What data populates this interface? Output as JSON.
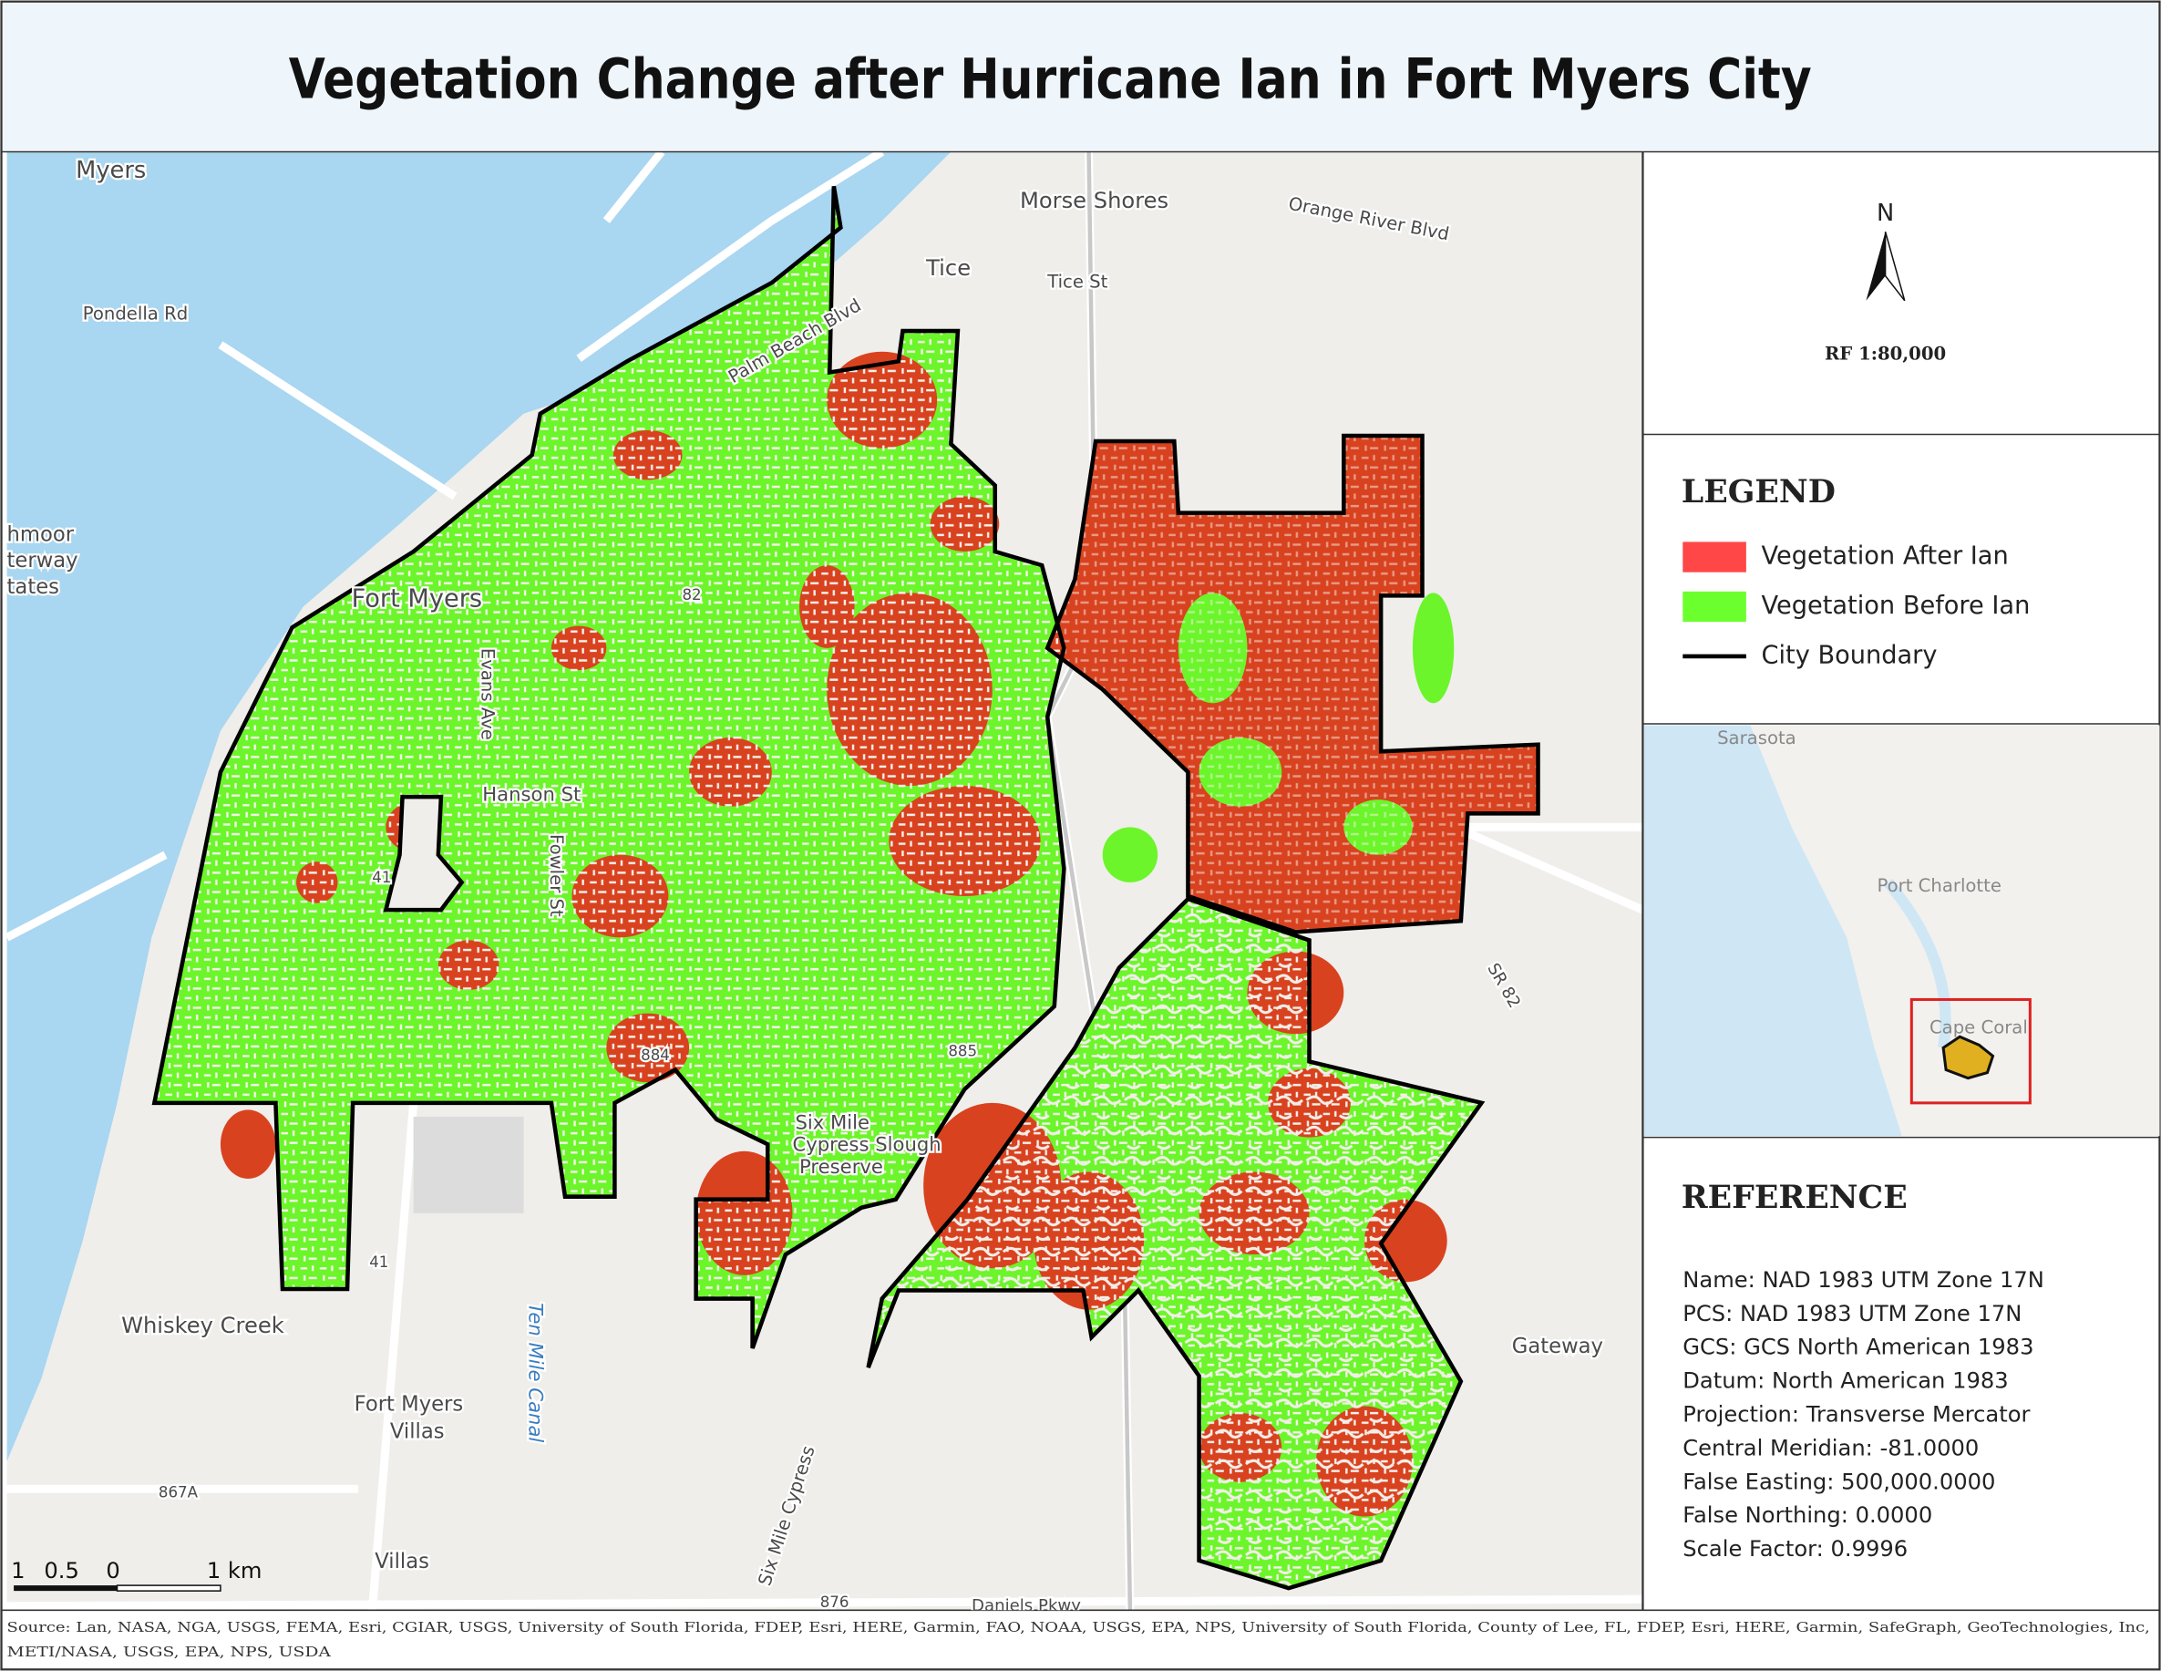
{
  "title": "Vegetation Change after Hurricane Ian in Fort Myers City",
  "map_labels": [
    "Myers",
    "Pondella Rd",
    "Morse Shores",
    "Orange River Blvd",
    "Tice",
    "Tice St",
    "Palm Beach Blvd",
    "Fort Myers",
    "Evans Ave",
    "Hanson St",
    "Fowler St",
    "Whiskey Creek",
    "Fort Myers",
    "Villas",
    "Ten Mile Canal",
    "Villas",
    "Daniels Pkwy",
    "Six Mile Cypress",
    "Gateway",
    "SR 82",
    "Six Mile",
    "Cypress Slough",
    "Preserve",
    "41",
    "41",
    "82",
    "884",
    "885",
    "876",
    "867A",
    "hmoor",
    "terway",
    "tates"
  ],
  "scale_bar": [
    "1",
    "0.5",
    "0",
    "1 km"
  ],
  "north_arrow": {
    "label": "N",
    "scale": "RF 1:80,000"
  },
  "legend": {
    "title": "LEGEND",
    "items": [
      {
        "label": "Vegetation After Ian",
        "color": "#ff4747"
      },
      {
        "label": "Vegetation Before Ian",
        "color": "#6cff2e"
      },
      {
        "label": "City Boundary",
        "color": "#000000"
      }
    ]
  },
  "inset": {
    "labels": [
      "Sarasota",
      "Port Charlotte",
      "Cape Coral"
    ]
  },
  "reference": {
    "title": "REFERENCE",
    "lines": [
      "Name: NAD 1983 UTM Zone 17N",
      "PCS: NAD 1983 UTM Zone 17N",
      "GCS: GCS North American 1983",
      "Datum: North American 1983",
      "Projection: Transverse Mercator",
      "Central Meridian: -81.0000",
      "False Easting: 500,000.0000",
      "False Northing: 0.0000",
      "Scale Factor: 0.9996"
    ]
  },
  "source": [
    "Source: Lan, NASA, NGA, USGS, FEMA, Esri, CGIAR, USGS, University of South Florida, FDEP, Esri, HERE, Garmin, FAO, NOAA, USGS, EPA, NPS, University of South Florida, County of Lee, FL, FDEP, Esri, HERE, Garmin, SafeGraph, GeoTechnologies, Inc,",
    "METI/NASA, USGS, EPA, NPS, USDA"
  ]
}
